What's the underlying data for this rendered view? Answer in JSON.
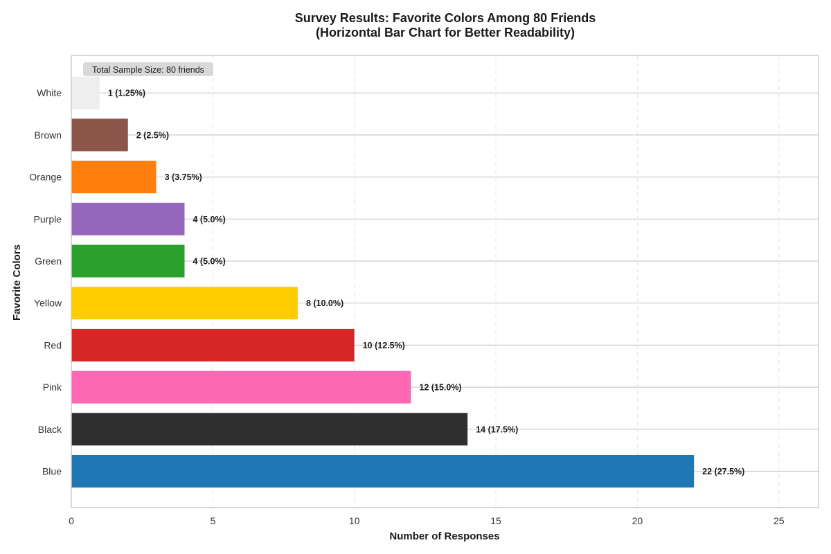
{
  "chart_data": {
    "type": "bar",
    "orientation": "horizontal",
    "title_line1": "Survey Results: Favorite Colors Among 80 Friends",
    "title_line2": "(Horizontal Bar Chart for Better Readability)",
    "xlabel": "Number of Responses",
    "ylabel": "Favorite Colors",
    "xlim": [
      0,
      26.4
    ],
    "xticks": [
      0,
      5,
      10,
      15,
      20,
      25
    ],
    "grid": true,
    "annotation": "Total Sample Size: 80 friends",
    "categories": [
      "Blue",
      "Black",
      "Pink",
      "Red",
      "Yellow",
      "Green",
      "Purple",
      "Orange",
      "Brown",
      "White"
    ],
    "values": [
      22,
      14,
      12,
      10,
      8,
      4,
      4,
      3,
      2,
      1
    ],
    "labels": [
      "22 (27.5%)",
      "14 (17.5%)",
      "12 (15.0%)",
      "10 (12.5%)",
      "8 (10.0%)",
      "4 (5.0%)",
      "4 (5.0%)",
      "3 (3.75%)",
      "2 (2.5%)",
      "1 (1.25%)"
    ],
    "colors": [
      "#1f77b4",
      "#2f2f2f",
      "#ff69b4",
      "#d62728",
      "#ffcc00",
      "#2ca02c",
      "#9467bd",
      "#ff7f0e",
      "#8c564b",
      "#eeeeee"
    ]
  }
}
